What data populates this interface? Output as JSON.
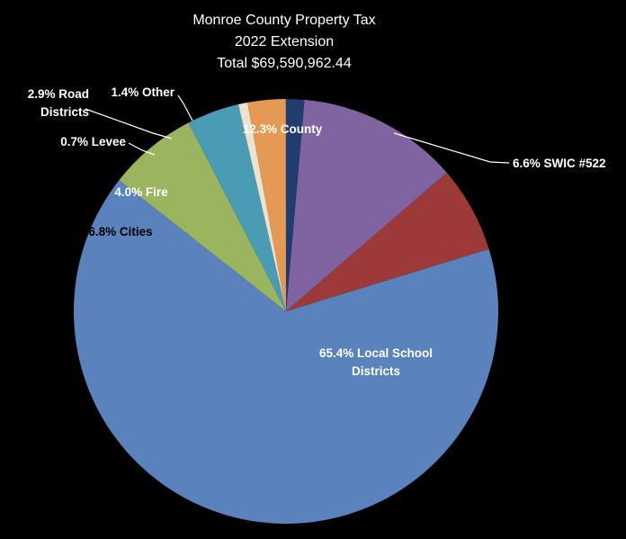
{
  "chart_data": {
    "type": "pie",
    "title_lines": [
      "Monroe County Property Tax",
      "2022 Extension",
      "Total $69,590,962.44"
    ],
    "start_angle_deg": 5,
    "slices": [
      {
        "name": "County",
        "label_lines": [
          "12.3% County"
        ],
        "value": 12.3,
        "color": "#8064a2"
      },
      {
        "name": "SWIC #522",
        "label_lines": [
          "6.6% SWIC #522"
        ],
        "value": 6.6,
        "color": "#9b3a38"
      },
      {
        "name": "Local School Districts",
        "label_lines": [
          "65.4% Local School",
          "Districts"
        ],
        "value": 65.4,
        "color": "#5a82bd"
      },
      {
        "name": "Cities",
        "label_lines": [
          "6.8% Cities"
        ],
        "value": 6.8,
        "color": "#9bb55e"
      },
      {
        "name": "Fire",
        "label_lines": [
          "4.0% Fire"
        ],
        "value": 4.0,
        "color": "#4a9bb4"
      },
      {
        "name": "Levee",
        "label_lines": [
          "0.7% Levee"
        ],
        "value": 0.7,
        "color": "#e9e3cf"
      },
      {
        "name": "Road Districts",
        "label_lines": [
          "2.9% Road",
          "Districts"
        ],
        "value": 2.9,
        "color": "#e49a54"
      },
      {
        "name": "Other",
        "label_lines": [
          "1.4% Other"
        ],
        "value": 1.4,
        "color": "#1f3d6e"
      }
    ],
    "legend": "none"
  }
}
